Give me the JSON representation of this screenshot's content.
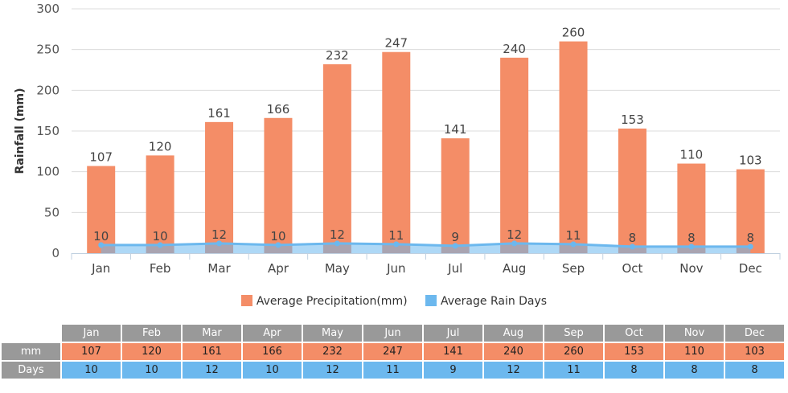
{
  "colors": {
    "precipitation": "#F48D67",
    "rain_days": "#6CB8EE",
    "header": "#999999"
  },
  "chart_data": {
    "type": "bar",
    "categories": [
      "Jan",
      "Feb",
      "Mar",
      "Apr",
      "May",
      "Jun",
      "Jul",
      "Aug",
      "Sep",
      "Oct",
      "Nov",
      "Dec"
    ],
    "ylabel": "Rainfall (mm)",
    "ylim": [
      0,
      300
    ],
    "yticks": [
      0,
      50,
      100,
      150,
      200,
      250,
      300
    ],
    "grid": true,
    "legend_position": "bottom",
    "series": [
      {
        "name": "Average Precipitation(mm)",
        "type": "bar",
        "values": [
          107,
          120,
          161,
          166,
          232,
          247,
          141,
          240,
          260,
          153,
          110,
          103
        ]
      },
      {
        "name": "Average Rain Days",
        "type": "area",
        "values": [
          10,
          10,
          12,
          10,
          12,
          11,
          9,
          12,
          11,
          8,
          8,
          8
        ]
      }
    ]
  },
  "table": {
    "row_labels": [
      "mm",
      "Days"
    ]
  }
}
